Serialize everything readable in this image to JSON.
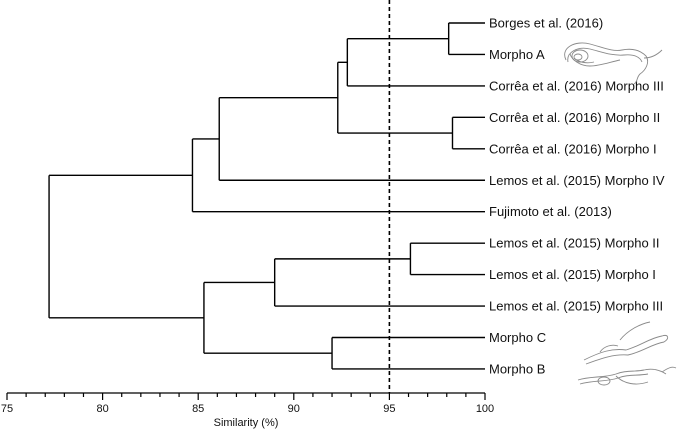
{
  "chart_data": {
    "type": "dendrogram",
    "xlabel": "Similarity (%)",
    "xlim": [
      75,
      100
    ],
    "x_ticks": [
      "75",
      "80",
      "85",
      "90",
      "95",
      "100"
    ],
    "cutoff_line": 95,
    "leaves": [
      "Borges et al. (2016)",
      "Morpho A",
      "Corrêa et al. (2016) Morpho III",
      "Corrêa et al. (2016) Morpho II",
      "Corrêa et al. (2016) Morpho I",
      "Lemos et al. (2015) Morpho IV",
      "Fujimoto  et al. (2013)",
      "Lemos et al. (2015) Morpho II",
      "Lemos et al. (2015) Morpho I",
      "Lemos et al. (2015) Morpho III",
      "Morpho C",
      "Morpho B"
    ],
    "merges": [
      {
        "id": "n1",
        "children": [
          "L0",
          "L1"
        ],
        "similarity": 98.1
      },
      {
        "id": "n2",
        "children": [
          "n1",
          "L2"
        ],
        "similarity": 92.8
      },
      {
        "id": "n3",
        "children": [
          "L3",
          "L4"
        ],
        "similarity": 98.3
      },
      {
        "id": "n4",
        "children": [
          "n2",
          "n3"
        ],
        "similarity": 92.3
      },
      {
        "id": "n5",
        "children": [
          "n4",
          "L5"
        ],
        "similarity": 86.1
      },
      {
        "id": "n6",
        "children": [
          "n5",
          "L6"
        ],
        "similarity": 84.7
      },
      {
        "id": "n7",
        "children": [
          "L7",
          "L8"
        ],
        "similarity": 96.1
      },
      {
        "id": "n8",
        "children": [
          "n7",
          "L9"
        ],
        "similarity": 89.0
      },
      {
        "id": "n9",
        "children": [
          "L10",
          "L11"
        ],
        "similarity": 92.0
      },
      {
        "id": "n10",
        "children": [
          "n8",
          "n9"
        ],
        "similarity": 85.3
      },
      {
        "id": "n11",
        "children": [
          "n6",
          "n10"
        ],
        "similarity": 77.2
      }
    ],
    "leaf_end_similarity": 100
  },
  "illustrations": [
    {
      "name": "trypanosome-sketch-morpho-a"
    },
    {
      "name": "trypanosome-sketch-morpho-b-c"
    }
  ]
}
